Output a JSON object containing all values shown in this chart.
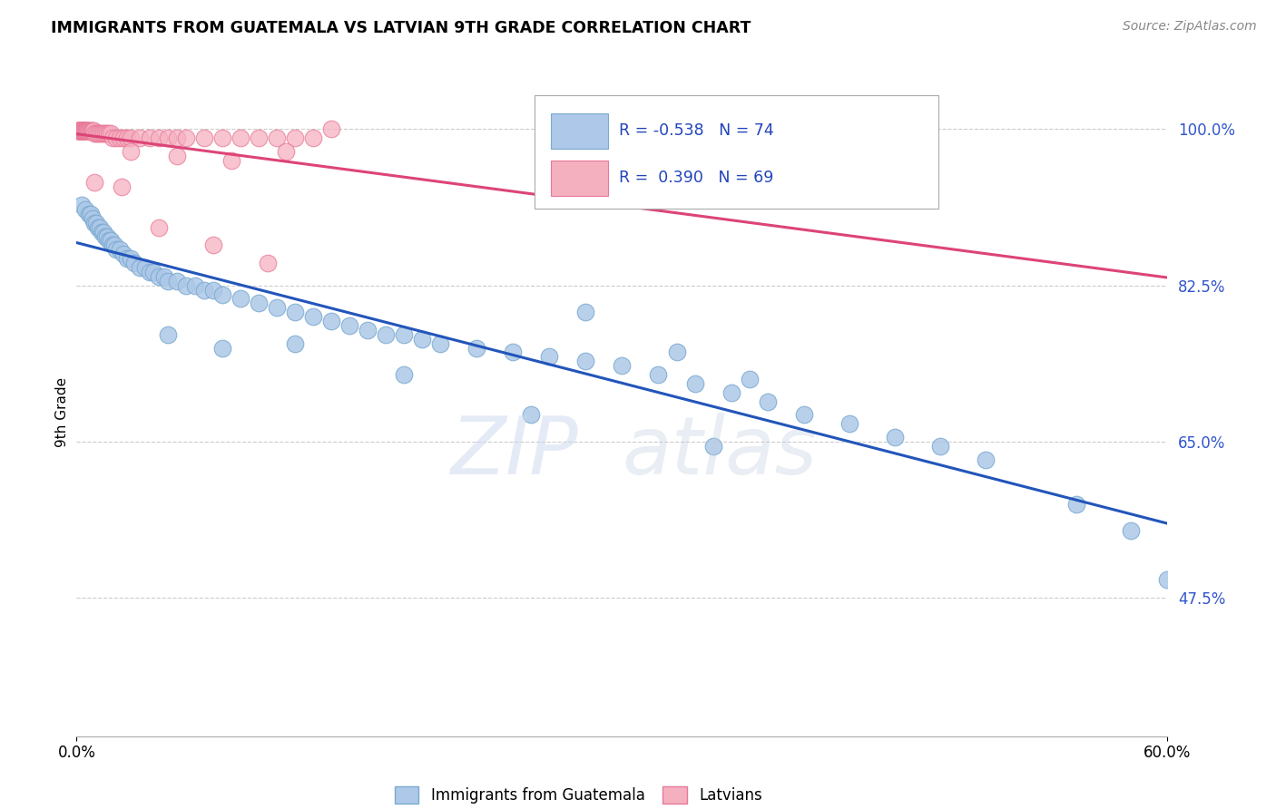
{
  "title": "IMMIGRANTS FROM GUATEMALA VS LATVIAN 9TH GRADE CORRELATION CHART",
  "source": "Source: ZipAtlas.com",
  "ylabel_label": "9th Grade",
  "xmin": 0.0,
  "xmax": 60.0,
  "ymin": 32.0,
  "ymax": 104.5,
  "blue_color": "#adc8e8",
  "blue_edge_color": "#7aaad0",
  "pink_color": "#f5b0c0",
  "pink_edge_color": "#e87898",
  "trend_blue_color": "#2255bb",
  "trend_pink_color": "#dd4477",
  "legend_blue_label": "Immigrants from Guatemala",
  "legend_pink_label": "Latvians",
  "R_blue": -0.538,
  "N_blue": 74,
  "R_pink": 0.39,
  "N_pink": 69,
  "ytick_vals": [
    47.5,
    65.0,
    82.5,
    100.0
  ],
  "blue_x": [
    0.3,
    0.5,
    0.7,
    0.8,
    0.9,
    1.0,
    1.1,
    1.2,
    1.3,
    1.4,
    1.5,
    1.6,
    1.7,
    1.8,
    1.9,
    2.0,
    2.1,
    2.2,
    2.4,
    2.6,
    2.8,
    3.0,
    3.2,
    3.5,
    3.8,
    4.0,
    4.2,
    4.5,
    4.8,
    5.0,
    5.5,
    6.0,
    6.5,
    7.0,
    7.5,
    8.0,
    9.0,
    10.0,
    11.0,
    12.0,
    13.0,
    14.0,
    15.0,
    16.0,
    17.0,
    18.0,
    19.0,
    20.0,
    22.0,
    24.0,
    26.0,
    28.0,
    30.0,
    32.0,
    34.0,
    36.0,
    38.0,
    40.0,
    42.5,
    45.0,
    47.5,
    50.0,
    55.0,
    58.0,
    60.0,
    28.0,
    33.0,
    37.0,
    5.0,
    8.0,
    12.0,
    18.0,
    25.0,
    35.0
  ],
  "blue_y": [
    91.5,
    91.0,
    90.5,
    90.5,
    90.0,
    89.5,
    89.5,
    89.0,
    89.0,
    88.5,
    88.5,
    88.0,
    88.0,
    87.5,
    87.5,
    87.0,
    87.0,
    86.5,
    86.5,
    86.0,
    85.5,
    85.5,
    85.0,
    84.5,
    84.5,
    84.0,
    84.0,
    83.5,
    83.5,
    83.0,
    83.0,
    82.5,
    82.5,
    82.0,
    82.0,
    81.5,
    81.0,
    80.5,
    80.0,
    79.5,
    79.0,
    78.5,
    78.0,
    77.5,
    77.0,
    77.0,
    76.5,
    76.0,
    75.5,
    75.0,
    74.5,
    74.0,
    73.5,
    72.5,
    71.5,
    70.5,
    69.5,
    68.0,
    67.0,
    65.5,
    64.5,
    63.0,
    58.0,
    55.0,
    49.5,
    79.5,
    75.0,
    72.0,
    77.0,
    75.5,
    76.0,
    72.5,
    68.0,
    64.5
  ],
  "pink_x": [
    0.05,
    0.08,
    0.1,
    0.12,
    0.15,
    0.18,
    0.2,
    0.22,
    0.25,
    0.28,
    0.3,
    0.32,
    0.35,
    0.38,
    0.4,
    0.42,
    0.45,
    0.48,
    0.5,
    0.52,
    0.55,
    0.58,
    0.6,
    0.65,
    0.7,
    0.75,
    0.8,
    0.85,
    0.9,
    0.95,
    1.0,
    1.1,
    1.2,
    1.3,
    1.4,
    1.5,
    1.6,
    1.7,
    1.8,
    1.9,
    2.0,
    2.2,
    2.4,
    2.6,
    2.8,
    3.0,
    3.5,
    4.0,
    4.5,
    5.0,
    5.5,
    6.0,
    7.0,
    8.0,
    9.0,
    10.0,
    11.0,
    12.0,
    13.0,
    14.0,
    3.0,
    5.5,
    8.5,
    11.5,
    1.0,
    2.5,
    4.5,
    7.5,
    10.5
  ],
  "pink_y": [
    99.8,
    99.8,
    99.8,
    99.8,
    99.8,
    99.8,
    99.8,
    99.8,
    99.8,
    99.8,
    99.8,
    99.8,
    99.8,
    99.8,
    99.8,
    99.8,
    99.8,
    99.8,
    99.8,
    99.8,
    99.8,
    99.8,
    99.8,
    99.8,
    99.8,
    99.8,
    99.8,
    99.8,
    99.8,
    99.8,
    99.5,
    99.5,
    99.5,
    99.5,
    99.5,
    99.5,
    99.5,
    99.5,
    99.5,
    99.5,
    99.0,
    99.0,
    99.0,
    99.0,
    99.0,
    99.0,
    99.0,
    99.0,
    99.0,
    99.0,
    99.0,
    99.0,
    99.0,
    99.0,
    99.0,
    99.0,
    99.0,
    99.0,
    99.0,
    100.0,
    97.5,
    97.0,
    96.5,
    97.5,
    94.0,
    93.5,
    89.0,
    87.0,
    85.0
  ]
}
